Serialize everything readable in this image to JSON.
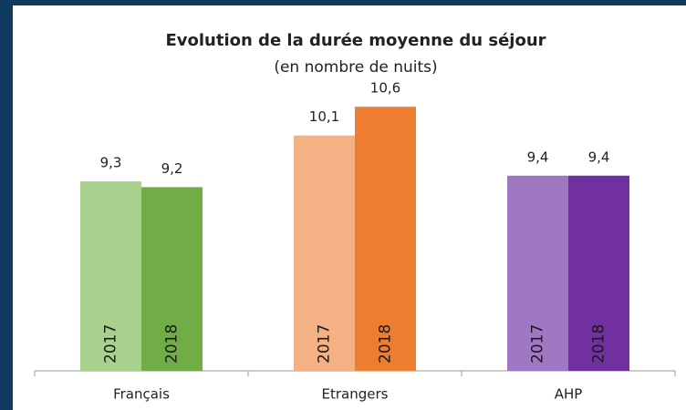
{
  "chart_data": {
    "type": "bar",
    "title": "Evolution de la durée moyenne du séjour",
    "subtitle": "(en nombre de nuits)",
    "categories": [
      "Français",
      "Etrangers",
      "AHP"
    ],
    "series": [
      {
        "name": "2017",
        "colors": [
          "#a9d18e",
          "#f4b183",
          "#a077c3"
        ],
        "values": [
          9.3,
          10.1,
          9.4
        ],
        "value_labels": [
          "9,3",
          "10,1",
          "9,4"
        ]
      },
      {
        "name": "2018",
        "colors": [
          "#70ad47",
          "#ed7d31",
          "#7030a0"
        ],
        "values": [
          9.2,
          10.6,
          9.4
        ],
        "value_labels": [
          "9,2",
          "10,6",
          "9,4"
        ]
      }
    ],
    "ylim": [
      6,
      11
    ]
  }
}
